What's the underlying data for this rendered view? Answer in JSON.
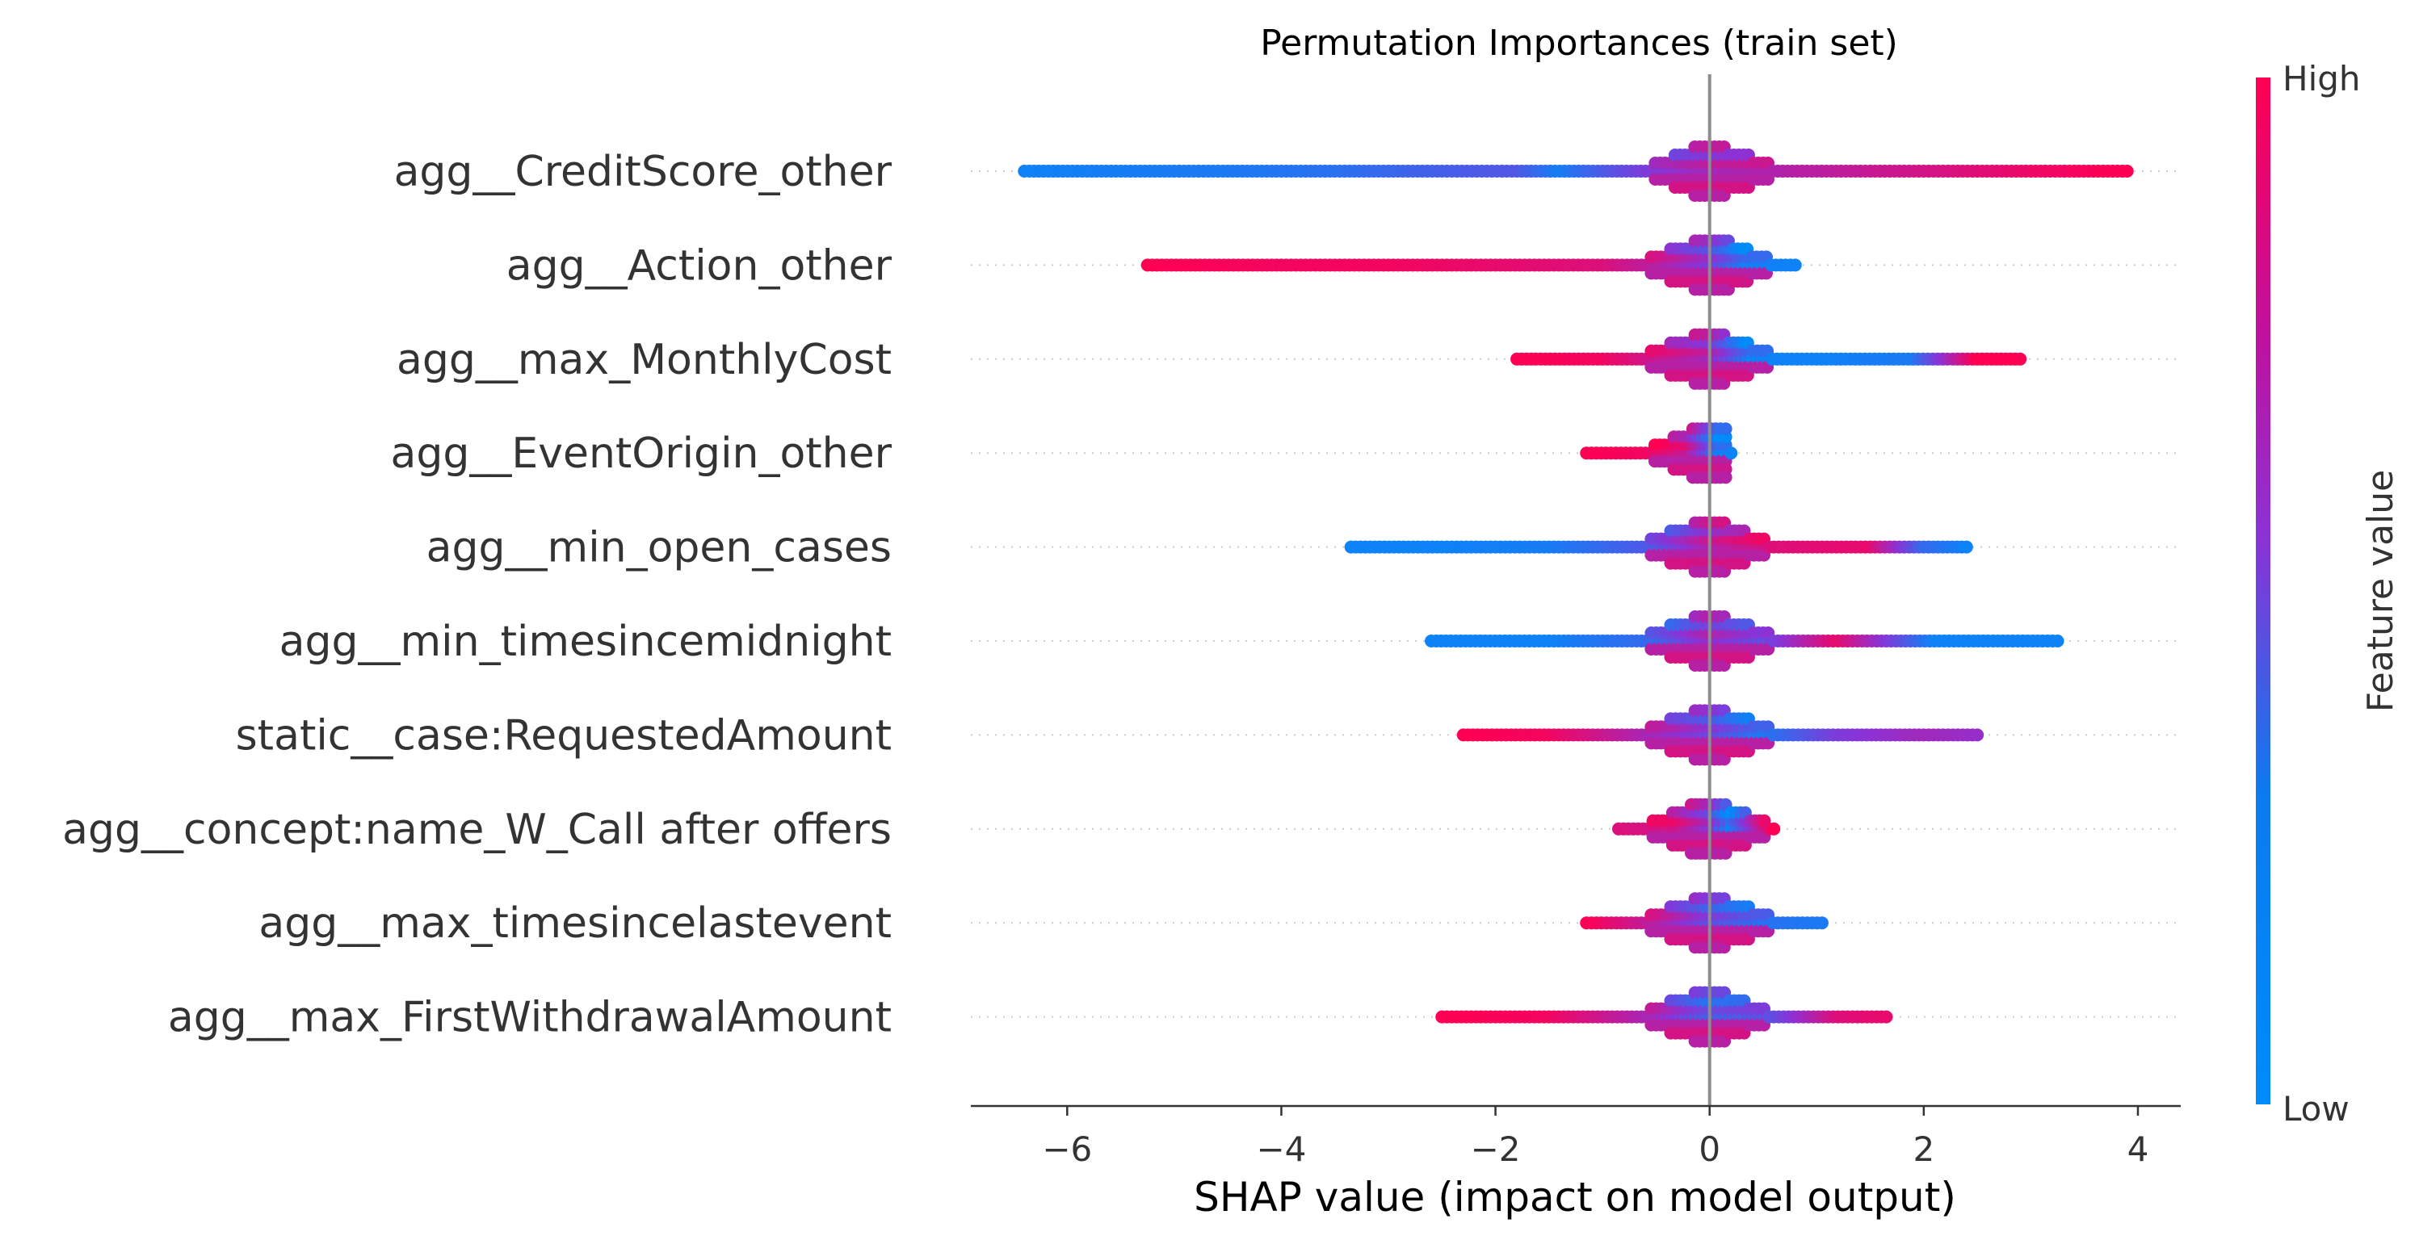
{
  "chart_data": {
    "type": "scatter",
    "title": "Permutation Importances (train set)",
    "xlabel": "SHAP value (impact on model output)",
    "xlim": [
      -6.9,
      4.4
    ],
    "xticks": [
      {
        "value": -6,
        "label": "−6"
      },
      {
        "value": -4,
        "label": "−4"
      },
      {
        "value": -2,
        "label": "−2"
      },
      {
        "value": 0,
        "label": "0"
      },
      {
        "value": 2,
        "label": "2"
      },
      {
        "value": 4,
        "label": "4"
      }
    ],
    "colorbar": {
      "title": "Feature value",
      "high_label": "High",
      "low_label": "Low",
      "colors": {
        "high": "#ff0052",
        "mid": "#8a33d6",
        "low": "#008bfb"
      }
    },
    "features": [
      {
        "name": "agg__CreditScore_other",
        "points": [
          {
            "x": -6.4,
            "c": 0.05
          },
          {
            "x": -5.5,
            "c": 0.08
          },
          {
            "x": -4.5,
            "c": 0.1
          },
          {
            "x": -3.5,
            "c": 0.15
          },
          {
            "x": -2.5,
            "c": 0.25
          },
          {
            "x": -1.8,
            "c": 0.3
          },
          {
            "x": -1.4,
            "c": 0.08
          },
          {
            "x": -0.6,
            "c": 0.45
          },
          {
            "x": 0.0,
            "c": 0.6
          },
          {
            "x": 1.0,
            "c": 0.7
          },
          {
            "x": 2.0,
            "c": 0.8
          },
          {
            "x": 3.0,
            "c": 0.92
          },
          {
            "x": 3.9,
            "c": 1.0
          }
        ]
      },
      {
        "name": "agg__Action_other",
        "points": [
          {
            "x": -5.25,
            "c": 1.0
          },
          {
            "x": -4.0,
            "c": 0.95
          },
          {
            "x": -3.0,
            "c": 0.95
          },
          {
            "x": -2.0,
            "c": 0.9
          },
          {
            "x": -1.0,
            "c": 0.85
          },
          {
            "x": -0.5,
            "c": 0.7
          },
          {
            "x": 0.0,
            "c": 0.45
          },
          {
            "x": 0.35,
            "c": 0.08
          },
          {
            "x": 0.8,
            "c": 0.05
          }
        ]
      },
      {
        "name": "agg__max_MonthlyCost",
        "points": [
          {
            "x": -1.8,
            "c": 1.0
          },
          {
            "x": -1.0,
            "c": 0.95
          },
          {
            "x": 0.0,
            "c": 0.6
          },
          {
            "x": 0.4,
            "c": 0.05
          },
          {
            "x": 1.0,
            "c": 0.05
          },
          {
            "x": 1.9,
            "c": 0.1
          },
          {
            "x": 2.5,
            "c": 1.0
          },
          {
            "x": 2.9,
            "c": 1.0
          }
        ]
      },
      {
        "name": "agg__EventOrigin_other",
        "points": [
          {
            "x": -1.15,
            "c": 1.0
          },
          {
            "x": -0.6,
            "c": 0.95
          },
          {
            "x": -0.2,
            "c": 0.75
          },
          {
            "x": 0.1,
            "c": 0.05
          },
          {
            "x": 0.2,
            "c": 0.05
          }
        ]
      },
      {
        "name": "agg__min_open_cases",
        "points": [
          {
            "x": -3.35,
            "c": 0.05
          },
          {
            "x": -2.5,
            "c": 0.05
          },
          {
            "x": -1.5,
            "c": 0.08
          },
          {
            "x": -0.5,
            "c": 0.3
          },
          {
            "x": 0.0,
            "c": 0.65
          },
          {
            "x": 0.6,
            "c": 0.85
          },
          {
            "x": 1.5,
            "c": 0.9
          },
          {
            "x": 2.0,
            "c": 0.2
          },
          {
            "x": 2.4,
            "c": 0.05
          }
        ]
      },
      {
        "name": "agg__min_timesincemidnight",
        "points": [
          {
            "x": -2.6,
            "c": 0.05
          },
          {
            "x": -1.5,
            "c": 0.05
          },
          {
            "x": -0.5,
            "c": 0.2
          },
          {
            "x": 0.0,
            "c": 0.55
          },
          {
            "x": 0.5,
            "c": 0.35
          },
          {
            "x": 1.2,
            "c": 0.9
          },
          {
            "x": 2.1,
            "c": 0.05
          },
          {
            "x": 2.6,
            "c": 0.05
          },
          {
            "x": 3.25,
            "c": 0.05
          }
        ]
      },
      {
        "name": "static__case:RequestedAmount",
        "points": [
          {
            "x": -2.3,
            "c": 1.0
          },
          {
            "x": -1.5,
            "c": 0.95
          },
          {
            "x": -0.5,
            "c": 0.6
          },
          {
            "x": 0.0,
            "c": 0.4
          },
          {
            "x": 0.5,
            "c": 0.1
          },
          {
            "x": 1.2,
            "c": 0.45
          },
          {
            "x": 2.0,
            "c": 0.6
          },
          {
            "x": 2.5,
            "c": 0.55
          }
        ]
      },
      {
        "name": "agg__concept:name_W_Call after offers",
        "points": [
          {
            "x": -0.85,
            "c": 0.85
          },
          {
            "x": -0.3,
            "c": 0.8
          },
          {
            "x": 0.0,
            "c": 0.5
          },
          {
            "x": 0.2,
            "c": 0.05
          },
          {
            "x": 0.6,
            "c": 1.0
          }
        ]
      },
      {
        "name": "agg__max_timesincelastevent",
        "points": [
          {
            "x": -1.15,
            "c": 1.0
          },
          {
            "x": -0.5,
            "c": 0.7
          },
          {
            "x": 0.0,
            "c": 0.35
          },
          {
            "x": 0.5,
            "c": 0.15
          },
          {
            "x": 1.05,
            "c": 0.1
          }
        ]
      },
      {
        "name": "agg__max_FirstWithdrawalAmount",
        "points": [
          {
            "x": -2.5,
            "c": 1.0
          },
          {
            "x": -1.5,
            "c": 0.95
          },
          {
            "x": -0.5,
            "c": 0.6
          },
          {
            "x": 0.0,
            "c": 0.25
          },
          {
            "x": 0.6,
            "c": 0.35
          },
          {
            "x": 1.2,
            "c": 0.85
          },
          {
            "x": 1.65,
            "c": 0.9
          }
        ]
      }
    ]
  }
}
